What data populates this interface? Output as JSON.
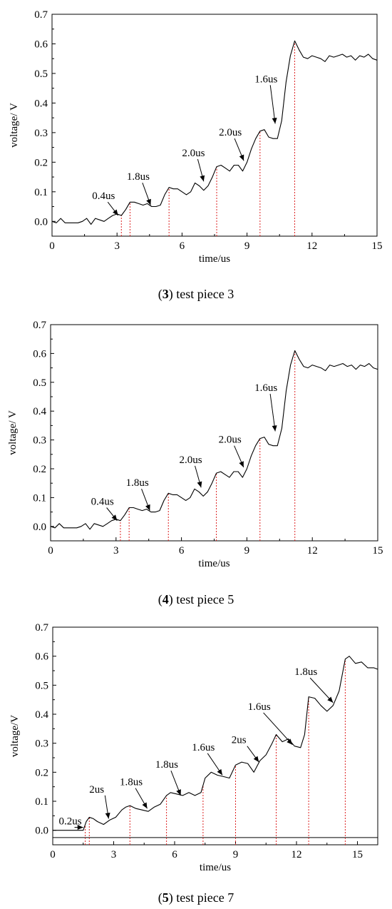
{
  "chart_data": [
    {
      "type": "line",
      "caption_num": "3",
      "caption_text": " test piece 3",
      "xlabel": "time/us",
      "ylabel": "voltage/ V",
      "xlim": [
        0,
        15
      ],
      "ylim": [
        -0.05,
        0.7
      ],
      "xticks": [
        0,
        3,
        6,
        9,
        12,
        15
      ],
      "xtick_labels": [
        "0",
        "3",
        "6",
        "9",
        "12",
        "15"
      ],
      "yticks": [
        0.0,
        0.1,
        0.2,
        0.3,
        0.4,
        0.5,
        0.6,
        0.7
      ],
      "ytick_labels": [
        "0.0",
        "0.1",
        "0.2",
        "0.3",
        "0.4",
        "0.5",
        "0.6",
        "0.7"
      ],
      "x": [
        0.0,
        0.2,
        0.4,
        0.6,
        0.8,
        1.0,
        1.2,
        1.4,
        1.6,
        1.8,
        2.0,
        2.2,
        2.4,
        2.6,
        2.8,
        3.0,
        3.2,
        3.4,
        3.6,
        3.8,
        4.0,
        4.2,
        4.4,
        4.6,
        4.8,
        5.0,
        5.2,
        5.4,
        5.6,
        5.8,
        6.0,
        6.2,
        6.4,
        6.6,
        6.8,
        7.0,
        7.2,
        7.4,
        7.6,
        7.8,
        8.0,
        8.2,
        8.4,
        8.6,
        8.8,
        9.0,
        9.2,
        9.4,
        9.6,
        9.8,
        10.0,
        10.2,
        10.4,
        10.6,
        10.8,
        11.0,
        11.2,
        11.4,
        11.6,
        11.8,
        12.0,
        12.2,
        12.4,
        12.6,
        12.8,
        13.0,
        13.2,
        13.4,
        13.6,
        13.8,
        14.0,
        14.2,
        14.4,
        14.6,
        14.8,
        15.0
      ],
      "y": [
        0.0,
        -0.005,
        0.01,
        -0.005,
        -0.005,
        -0.005,
        -0.005,
        0.0,
        0.01,
        -0.01,
        0.01,
        0.005,
        0.0,
        0.01,
        0.02,
        0.025,
        0.02,
        0.04,
        0.065,
        0.065,
        0.06,
        0.055,
        0.06,
        0.05,
        0.05,
        0.055,
        0.09,
        0.115,
        0.11,
        0.11,
        0.1,
        0.09,
        0.1,
        0.13,
        0.12,
        0.105,
        0.12,
        0.15,
        0.185,
        0.19,
        0.18,
        0.17,
        0.19,
        0.19,
        0.17,
        0.2,
        0.245,
        0.28,
        0.305,
        0.31,
        0.285,
        0.28,
        0.28,
        0.34,
        0.47,
        0.56,
        0.61,
        0.58,
        0.555,
        0.55,
        0.56,
        0.555,
        0.55,
        0.54,
        0.56,
        0.555,
        0.56,
        0.565,
        0.555,
        0.56,
        0.545,
        0.56,
        0.555,
        0.565,
        0.55,
        0.545
      ],
      "markers": [
        3.2,
        3.6,
        5.4,
        7.6,
        9.6,
        11.2
      ],
      "annotations": [
        {
          "text": "0.4us",
          "tx": 1.85,
          "ty": 0.075,
          "ax": 3.05,
          "ay": 0.02
        },
        {
          "text": "1.8us",
          "tx": 3.45,
          "ty": 0.14,
          "ax": 4.55,
          "ay": 0.055
        },
        {
          "text": "2.0us",
          "tx": 6.0,
          "ty": 0.22,
          "ax": 7.0,
          "ay": 0.135
        },
        {
          "text": "2.0us",
          "tx": 7.7,
          "ty": 0.29,
          "ax": 8.85,
          "ay": 0.205
        },
        {
          "text": "1.6us",
          "tx": 9.35,
          "ty": 0.47,
          "ax": 10.3,
          "ay": 0.33
        }
      ]
    },
    {
      "type": "line",
      "caption_num": "4",
      "caption_text": " test piece 5",
      "xlabel": "time/us",
      "ylabel": "voltage/ V",
      "xlim": [
        0,
        15
      ],
      "ylim": [
        -0.05,
        0.7
      ],
      "xticks": [
        0,
        3,
        6,
        9,
        12,
        15
      ],
      "xtick_labels": [
        "0",
        "3",
        "6",
        "9",
        "12",
        "15"
      ],
      "yticks": [
        0.0,
        0.1,
        0.2,
        0.3,
        0.4,
        0.5,
        0.6,
        0.7
      ],
      "ytick_labels": [
        "0.0",
        "0.1",
        "0.2",
        "0.3",
        "0.4",
        "0.5",
        "0.6",
        "0.7"
      ],
      "x": [
        0.0,
        0.2,
        0.4,
        0.6,
        0.8,
        1.0,
        1.2,
        1.4,
        1.6,
        1.8,
        2.0,
        2.2,
        2.4,
        2.6,
        2.8,
        3.0,
        3.2,
        3.4,
        3.6,
        3.8,
        4.0,
        4.2,
        4.4,
        4.6,
        4.8,
        5.0,
        5.2,
        5.4,
        5.6,
        5.8,
        6.0,
        6.2,
        6.4,
        6.6,
        6.8,
        7.0,
        7.2,
        7.4,
        7.6,
        7.8,
        8.0,
        8.2,
        8.4,
        8.6,
        8.8,
        9.0,
        9.2,
        9.4,
        9.6,
        9.8,
        10.0,
        10.2,
        10.4,
        10.6,
        10.8,
        11.0,
        11.2,
        11.4,
        11.6,
        11.8,
        12.0,
        12.2,
        12.4,
        12.6,
        12.8,
        13.0,
        13.2,
        13.4,
        13.6,
        13.8,
        14.0,
        14.2,
        14.4,
        14.6,
        14.8,
        15.0
      ],
      "y": [
        0.0,
        -0.005,
        0.01,
        -0.005,
        -0.005,
        -0.005,
        -0.005,
        0.0,
        0.01,
        -0.01,
        0.01,
        0.005,
        0.0,
        0.01,
        0.02,
        0.025,
        0.02,
        0.04,
        0.065,
        0.065,
        0.06,
        0.055,
        0.06,
        0.05,
        0.05,
        0.055,
        0.09,
        0.115,
        0.11,
        0.11,
        0.1,
        0.09,
        0.1,
        0.13,
        0.12,
        0.105,
        0.12,
        0.15,
        0.185,
        0.19,
        0.18,
        0.17,
        0.19,
        0.19,
        0.17,
        0.2,
        0.245,
        0.28,
        0.305,
        0.31,
        0.285,
        0.28,
        0.28,
        0.34,
        0.47,
        0.56,
        0.61,
        0.58,
        0.555,
        0.55,
        0.56,
        0.555,
        0.55,
        0.54,
        0.56,
        0.555,
        0.56,
        0.565,
        0.555,
        0.56,
        0.545,
        0.56,
        0.555,
        0.565,
        0.55,
        0.545
      ],
      "markers": [
        3.2,
        3.6,
        5.4,
        7.6,
        9.6,
        11.2
      ],
      "annotations": [
        {
          "text": "0.4us",
          "tx": 1.85,
          "ty": 0.075,
          "ax": 3.05,
          "ay": 0.02
        },
        {
          "text": "1.8us",
          "tx": 3.45,
          "ty": 0.14,
          "ax": 4.55,
          "ay": 0.055
        },
        {
          "text": "2.0us",
          "tx": 5.9,
          "ty": 0.22,
          "ax": 6.9,
          "ay": 0.135
        },
        {
          "text": "2.0us",
          "tx": 7.7,
          "ty": 0.29,
          "ax": 8.85,
          "ay": 0.205
        },
        {
          "text": "1.6us",
          "tx": 9.35,
          "ty": 0.47,
          "ax": 10.3,
          "ay": 0.33
        }
      ]
    },
    {
      "type": "line",
      "caption_num": "5",
      "caption_text": " test piece 7",
      "xlabel": "time/us",
      "ylabel": "voltage/V",
      "xlim": [
        0,
        16
      ],
      "ylim": [
        -0.05,
        0.7
      ],
      "xticks": [
        0,
        3,
        6,
        9,
        12,
        15
      ],
      "xtick_labels": [
        "0",
        "3",
        "6",
        "9",
        "12",
        "15"
      ],
      "yticks": [
        0.0,
        0.1,
        0.2,
        0.3,
        0.4,
        0.5,
        0.6,
        0.7
      ],
      "ytick_labels": [
        "0.0",
        "0.1",
        "0.2",
        "0.3",
        "0.4",
        "0.5",
        "0.6",
        "0.7"
      ],
      "baseline_y": -0.025,
      "x": [
        0.0,
        1.5,
        1.65,
        1.8,
        2.0,
        2.2,
        2.5,
        2.8,
        3.1,
        3.4,
        3.6,
        3.8,
        4.1,
        4.4,
        4.7,
        5.0,
        5.3,
        5.6,
        5.8,
        6.1,
        6.4,
        6.7,
        7.0,
        7.3,
        7.5,
        7.8,
        8.1,
        8.4,
        8.7,
        9.0,
        9.3,
        9.6,
        9.9,
        10.2,
        10.5,
        10.8,
        11.0,
        11.3,
        11.6,
        11.9,
        12.2,
        12.4,
        12.6,
        12.9,
        13.2,
        13.5,
        13.8,
        14.1,
        14.4,
        14.6,
        14.9,
        15.2,
        15.5,
        15.8,
        16.0
      ],
      "y": [
        0.0,
        0.0,
        0.03,
        0.045,
        0.04,
        0.03,
        0.02,
        0.035,
        0.045,
        0.07,
        0.08,
        0.085,
        0.075,
        0.07,
        0.065,
        0.08,
        0.09,
        0.12,
        0.13,
        0.125,
        0.12,
        0.13,
        0.12,
        0.13,
        0.18,
        0.2,
        0.19,
        0.185,
        0.18,
        0.225,
        0.235,
        0.23,
        0.2,
        0.24,
        0.26,
        0.3,
        0.33,
        0.305,
        0.315,
        0.29,
        0.285,
        0.33,
        0.46,
        0.455,
        0.43,
        0.41,
        0.43,
        0.48,
        0.59,
        0.6,
        0.575,
        0.58,
        0.56,
        0.56,
        0.555
      ],
      "markers": [
        1.6,
        1.8,
        3.8,
        5.6,
        7.4,
        9.0,
        11.0,
        12.6,
        14.4
      ],
      "annotations": [
        {
          "text": "0.2us",
          "tx": 0.3,
          "ty": 0.02,
          "ax": 1.5,
          "ay": 0.01
        },
        {
          "text": "2us",
          "tx": 1.8,
          "ty": 0.13,
          "ax": 2.75,
          "ay": 0.04
        },
        {
          "text": "1.8us",
          "tx": 3.3,
          "ty": 0.155,
          "ax": 4.65,
          "ay": 0.075
        },
        {
          "text": "1.8us",
          "tx": 5.05,
          "ty": 0.215,
          "ax": 6.3,
          "ay": 0.12
        },
        {
          "text": "1.6us",
          "tx": 6.85,
          "ty": 0.275,
          "ax": 8.35,
          "ay": 0.19
        },
        {
          "text": "2us",
          "tx": 8.8,
          "ty": 0.3,
          "ax": 10.15,
          "ay": 0.235
        },
        {
          "text": "1.6us",
          "tx": 9.6,
          "ty": 0.415,
          "ax": 11.8,
          "ay": 0.295
        },
        {
          "text": "1.8us",
          "tx": 11.9,
          "ty": 0.535,
          "ax": 13.8,
          "ay": 0.44
        }
      ]
    }
  ]
}
